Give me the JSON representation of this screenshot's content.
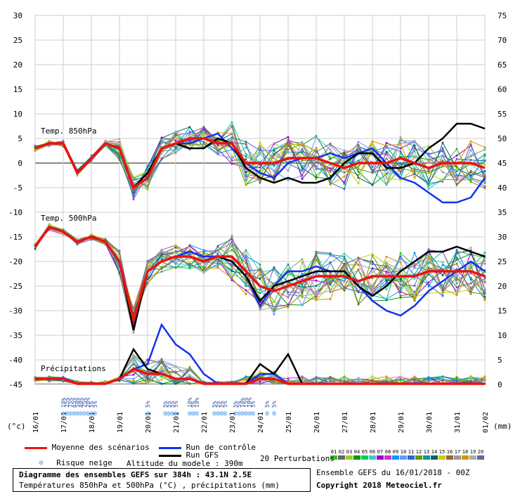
{
  "chart_data": {
    "type": "line",
    "left_axis_ticks": [
      "30",
      "25",
      "20",
      "15",
      "10",
      "5",
      "0",
      "-5",
      "-10",
      "-15",
      "-20",
      "-25",
      "-30",
      "-35",
      "-40",
      "-45"
    ],
    "right_axis_ticks": [
      "75",
      "70",
      "65",
      "60",
      "55",
      "50",
      "45",
      "40",
      "35",
      "30",
      "25",
      "20",
      "15",
      "10",
      "5",
      "0"
    ],
    "left_unit": "(°c)",
    "right_unit": "(mm)",
    "x_dates": [
      "16/01",
      "17/01",
      "18/01",
      "19/01",
      "20/01",
      "21/01",
      "22/01",
      "23/01",
      "24/01",
      "25/01",
      "26/01",
      "27/01",
      "28/01",
      "29/01",
      "30/01",
      "31/01",
      "01/02"
    ],
    "panel_labels": {
      "t850": "Temp. 850hPa",
      "t500": "Temp. 500hPa",
      "precip": "Précipitations"
    },
    "t850": {
      "mean": [
        3,
        4,
        4,
        -2,
        1,
        4,
        3,
        -5,
        -3,
        3,
        4,
        5,
        5,
        4,
        4,
        0,
        0,
        0,
        1,
        1,
        1,
        0,
        -1,
        0,
        0,
        0,
        1,
        0,
        -1,
        0,
        0,
        0,
        -1
      ],
      "control": [
        3,
        4,
        4,
        -2,
        1,
        4,
        3,
        -5,
        -3,
        3,
        4,
        4,
        5,
        6,
        3,
        0,
        -2,
        -3,
        0,
        1,
        1,
        2,
        1,
        2,
        3,
        0,
        -3,
        -4,
        -6,
        -8,
        -8,
        -7,
        -3
      ],
      "gfs": [
        3,
        4,
        4,
        -2,
        1,
        4,
        3,
        -5,
        -2,
        3,
        4,
        3,
        3,
        5,
        4,
        -1,
        -3,
        -4,
        -3,
        -4,
        -4,
        -3,
        0,
        2,
        2,
        -1,
        -1,
        0,
        3,
        5,
        8,
        8,
        7
      ]
    },
    "t500": {
      "mean": [
        -17,
        -13,
        -14,
        -16,
        -15,
        -16,
        -20,
        -32,
        -22,
        -20,
        -19,
        -19,
        -20,
        -19,
        -19,
        -22,
        -25,
        -26,
        -25,
        -24,
        -23,
        -23,
        -23,
        -24,
        -23,
        -23,
        -23,
        -23,
        -22,
        -22,
        -22,
        -22,
        -23
      ],
      "control": [
        -17,
        -13,
        -14,
        -16,
        -15,
        -16,
        -20,
        -33,
        -22,
        -20,
        -19,
        -18,
        -19,
        -19,
        -20,
        -23,
        -29,
        -25,
        -22,
        -22,
        -21,
        -22,
        -22,
        -25,
        -28,
        -30,
        -31,
        -29,
        -26,
        -24,
        -22,
        -20,
        -22
      ],
      "gfs": [
        -17,
        -13,
        -14,
        -16,
        -15,
        -16,
        -20,
        -34,
        -22,
        -20,
        -19,
        -19,
        -20,
        -19,
        -20,
        -23,
        -28,
        -25,
        -24,
        -23,
        -22,
        -22,
        -22,
        -25,
        -27,
        -25,
        -22,
        -20,
        -18,
        -18,
        -17,
        -18,
        -19
      ]
    },
    "precip": {
      "mean": [
        1,
        1,
        1,
        0,
        0,
        0,
        1,
        3,
        2,
        2,
        1,
        1,
        0,
        0,
        0,
        0,
        1,
        1,
        0,
        0,
        0,
        0,
        0,
        0,
        0,
        0,
        0,
        0,
        0,
        0,
        0,
        0,
        0
      ],
      "control": [
        1,
        1,
        1,
        0,
        0,
        0,
        1,
        3,
        4,
        12,
        8,
        6,
        2,
        0,
        0,
        0,
        2,
        2,
        0,
        0,
        0,
        0,
        0,
        0,
        0,
        0,
        0,
        0,
        0,
        0,
        0,
        0,
        0
      ],
      "gfs": [
        1,
        1,
        1,
        0,
        0,
        0,
        1,
        7,
        3,
        2,
        1,
        1,
        0,
        0,
        0,
        0,
        4,
        2,
        6,
        0,
        0,
        0,
        0,
        0,
        0,
        0,
        0,
        0,
        0,
        0,
        0,
        0,
        0
      ]
    },
    "snow_risk": [
      {
        "i": 8,
        "p": "10%"
      },
      {
        "i": 9,
        "p": "25%"
      },
      {
        "i": 10,
        "p": "75%"
      },
      {
        "i": 11,
        "p": "65%"
      },
      {
        "i": 12,
        "p": "50%"
      },
      {
        "i": 13,
        "p": "40%"
      },
      {
        "i": 14,
        "p": "25%"
      },
      {
        "i": 15,
        "p": "20%"
      },
      {
        "i": 16,
        "p": "5%"
      },
      {
        "i": 17,
        "p": "5%"
      },
      {
        "i": 32,
        "p": "5%"
      },
      {
        "i": 37,
        "p": "5%"
      },
      {
        "i": 38,
        "p": "5%"
      },
      {
        "i": 39,
        "p": "5%"
      },
      {
        "i": 40,
        "p": "5%"
      },
      {
        "i": 44,
        "p": "10%"
      },
      {
        "i": 45,
        "p": "5%"
      },
      {
        "i": 46,
        "p": "10%"
      },
      {
        "i": 51,
        "p": "5%"
      },
      {
        "i": 52,
        "p": "5%"
      },
      {
        "i": 53,
        "p": "5%"
      },
      {
        "i": 54,
        "p": "5%"
      },
      {
        "i": 57,
        "p": "5%"
      },
      {
        "i": 58,
        "p": "5%"
      },
      {
        "i": 59,
        "p": "10%"
      },
      {
        "i": 60,
        "p": "15%"
      },
      {
        "i": 61,
        "p": "10%"
      },
      {
        "i": 62,
        "p": "5%"
      },
      {
        "i": 66,
        "p": "5%"
      },
      {
        "i": 68,
        "p": "5%"
      }
    ],
    "perturbation_colors": [
      "#33bb33",
      "#666666",
      "#99cc33",
      "#009900",
      "#00cc66",
      "#33cccc",
      "#9900cc",
      "#cc33cc",
      "#0099ff",
      "#6699ff",
      "#3366cc",
      "#669900",
      "#009999",
      "#006666",
      "#cccc00",
      "#996633",
      "#999999",
      "#cc9900",
      "#aaaaaa",
      "#666699"
    ]
  },
  "legend": {
    "mean": "Moyenne des scénarios",
    "control": "Run de contrôle",
    "gfs": "Run GFS",
    "snow": "Risque neige",
    "altitude": "Altitude du modele : 390m",
    "perturbations": "20 Perturbations",
    "pert_numbers": [
      "01",
      "02",
      "03",
      "04",
      "05",
      "06",
      "07",
      "08",
      "09",
      "10",
      "11",
      "12",
      "13",
      "14",
      "15",
      "16",
      "17",
      "18",
      "19",
      "20"
    ],
    "colors": {
      "mean": "#ee1111",
      "control": "#1133ee",
      "gfs": "#000000",
      "snow": "#66aaee"
    }
  },
  "info": {
    "title": "Diagramme des ensembles GEFS sur 384h : 43.1N 2.5E",
    "subtitle": "Températures 850hPa et 500hPa (°C) , précipitations (mm)",
    "run": "Ensemble GEFS du 16/01/2018 - 00Z",
    "copyright": "Copyright 2018 Meteociel.fr"
  }
}
